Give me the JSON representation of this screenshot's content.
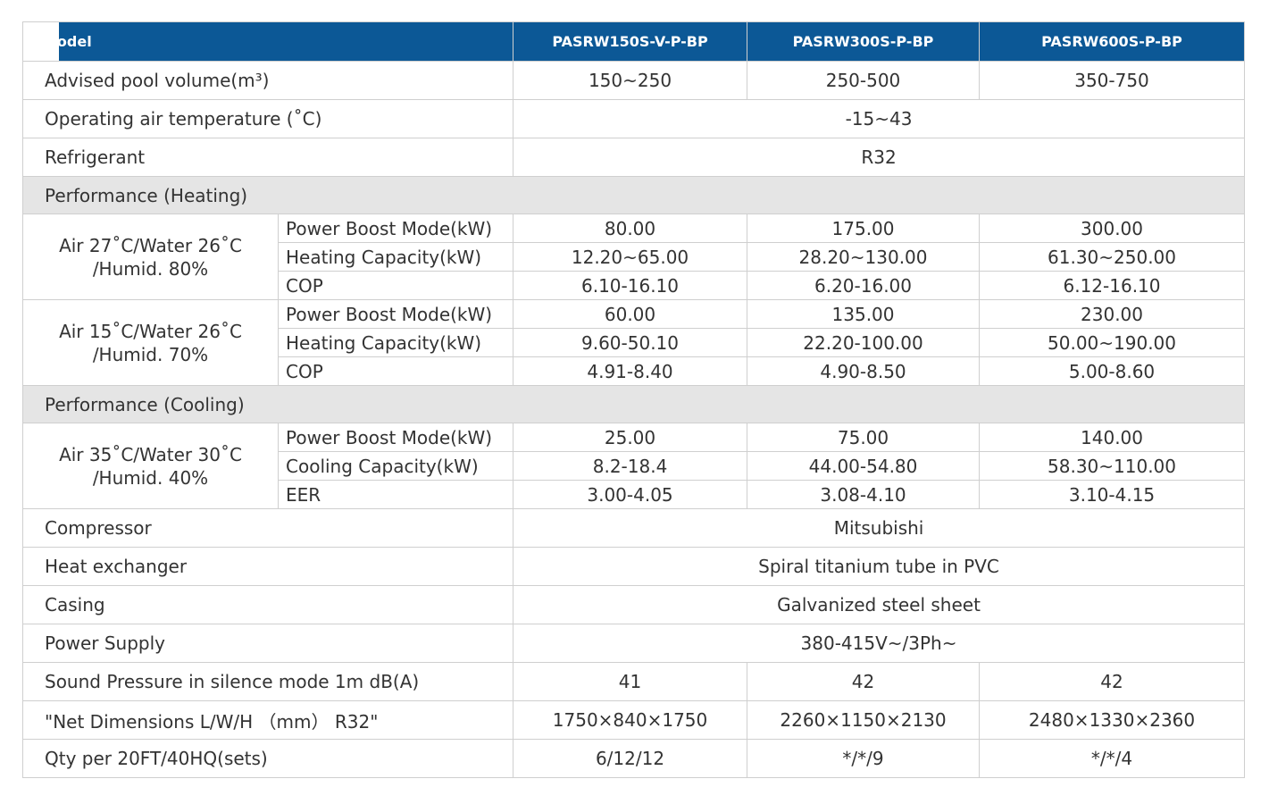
{
  "table": {
    "header": [
      "Model",
      "PASRW150S-V-P-BP",
      "PASRW300S-P-BP",
      "PASRW600S-P-BP"
    ],
    "rows": [
      {
        "label": "Advised pool volume(m³)",
        "values": [
          "150~250",
          "250-500",
          "350-750"
        ]
      },
      {
        "label": "Operating air temperature (˚C)",
        "values": [
          "-15~43"
        ]
      },
      {
        "label": "Refrigerant",
        "values": [
          "R32"
        ]
      },
      {
        "section": "Performance (Heating)"
      },
      {
        "condition": [
          "Air 27˚C/Water 26˚C",
          "/Humid. 80%"
        ],
        "items": [
          {
            "label": "Power Boost Mode(kW)",
            "values": [
              "80.00",
              "175.00",
              "300.00"
            ]
          },
          {
            "label": "Heating Capacity(kW)",
            "values": [
              "12.20~65.00",
              "28.20~130.00",
              "61.30~250.00"
            ]
          },
          {
            "label": "COP",
            "values": [
              "6.10-16.10",
              "6.20-16.00",
              "6.12-16.10"
            ]
          }
        ]
      },
      {
        "condition": [
          "Air 15˚C/Water 26˚C",
          "/Humid. 70%"
        ],
        "items": [
          {
            "label": "Power Boost Mode(kW)",
            "values": [
              "60.00",
              "135.00",
              "230.00"
            ]
          },
          {
            "label": "Heating Capacity(kW)",
            "values": [
              "9.60-50.10",
              "22.20-100.00",
              "50.00~190.00"
            ]
          },
          {
            "label": "COP",
            "values": [
              "4.91-8.40",
              "4.90-8.50",
              "5.00-8.60"
            ]
          }
        ]
      },
      {
        "section": "Performance (Cooling)"
      },
      {
        "condition": [
          "Air 35˚C/Water  30˚C",
          "/Humid. 40%"
        ],
        "items": [
          {
            "label": "Power Boost Mode(kW)",
            "values": [
              "25.00",
              "75.00",
              "140.00"
            ]
          },
          {
            "label": "Cooling Capacity(kW)",
            "values": [
              "8.2-18.4",
              "44.00-54.80",
              "58.30~110.00"
            ]
          },
          {
            "label": "EER",
            "values": [
              "3.00-4.05",
              "3.08-4.10",
              "3.10-4.15"
            ]
          }
        ]
      },
      {
        "label": "Compressor",
        "values": [
          "Mitsubishi"
        ]
      },
      {
        "label": "Heat exchanger",
        "values": [
          "Spiral titanium tube in PVC"
        ]
      },
      {
        "label": "Casing",
        "values": [
          "Galvanized steel sheet"
        ]
      },
      {
        "label": "Power Supply",
        "values": [
          "380-415V~/3Ph~"
        ]
      },
      {
        "label": "Sound Pressure in silence mode 1m dB(A)",
        "values": [
          "41",
          "42",
          "42"
        ]
      },
      {
        "label": "\"Net Dimensions L/W/H （mm） R32\"",
        "values": [
          "1750×840×1750",
          "2260×1150×2130",
          "2480×1330×2360"
        ]
      },
      {
        "label": "Qty per 20FT/40HQ(sets)",
        "values": [
          "6/12/12",
          "*/*/9",
          "*/*/4"
        ]
      }
    ]
  }
}
